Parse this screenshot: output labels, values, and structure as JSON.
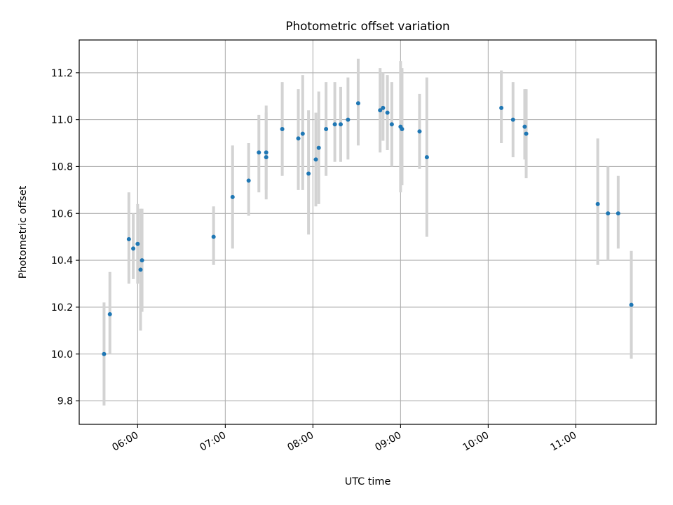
{
  "chart_data": {
    "type": "scatter",
    "title": "Photometric offset variation",
    "xlabel": "UTC time",
    "ylabel": "Photometric offset",
    "xlim": [
      "05:20",
      "11:55"
    ],
    "ylim": [
      9.7,
      11.34
    ],
    "xticks": [
      "06:00",
      "07:00",
      "08:00",
      "09:00",
      "10:00",
      "11:00"
    ],
    "yticks": [
      "9.8",
      "10.0",
      "10.2",
      "10.4",
      "10.6",
      "10.8",
      "11.0",
      "11.2"
    ],
    "grid": true,
    "point_color": "#1f77b4",
    "errorbar_color": "#d3d3d3",
    "series": [
      {
        "points": [
          {
            "t": "05:37",
            "y": 10.0,
            "lo": 9.78,
            "hi": 10.22
          },
          {
            "t": "05:41",
            "y": 10.17,
            "lo": 10.0,
            "hi": 10.35
          },
          {
            "t": "05:54",
            "y": 10.49,
            "lo": 10.3,
            "hi": 10.69
          },
          {
            "t": "05:57",
            "y": 10.45,
            "lo": 10.32,
            "hi": 10.6
          },
          {
            "t": "06:00",
            "y": 10.47,
            "lo": 10.3,
            "hi": 10.64
          },
          {
            "t": "06:02",
            "y": 10.36,
            "lo": 10.1,
            "hi": 10.62
          },
          {
            "t": "06:03",
            "y": 10.4,
            "lo": 10.18,
            "hi": 10.62
          },
          {
            "t": "06:52",
            "y": 10.5,
            "lo": 10.38,
            "hi": 10.63
          },
          {
            "t": "07:05",
            "y": 10.67,
            "lo": 10.45,
            "hi": 10.89
          },
          {
            "t": "07:16",
            "y": 10.74,
            "lo": 10.59,
            "hi": 10.9
          },
          {
            "t": "07:23",
            "y": 10.86,
            "lo": 10.69,
            "hi": 11.02
          },
          {
            "t": "07:28",
            "y": 10.86,
            "lo": 10.7,
            "hi": 11.06
          },
          {
            "t": "07:28",
            "y": 10.84,
            "lo": 10.66,
            "hi": 11.03
          },
          {
            "t": "07:39",
            "y": 10.96,
            "lo": 10.76,
            "hi": 11.16
          },
          {
            "t": "07:50",
            "y": 10.92,
            "lo": 10.7,
            "hi": 11.13
          },
          {
            "t": "07:53",
            "y": 10.94,
            "lo": 10.7,
            "hi": 11.19
          },
          {
            "t": "07:57",
            "y": 10.77,
            "lo": 10.51,
            "hi": 11.04
          },
          {
            "t": "08:02",
            "y": 10.83,
            "lo": 10.63,
            "hi": 11.03
          },
          {
            "t": "08:04",
            "y": 10.88,
            "lo": 10.64,
            "hi": 11.12
          },
          {
            "t": "08:09",
            "y": 10.96,
            "lo": 10.76,
            "hi": 11.16
          },
          {
            "t": "08:15",
            "y": 10.98,
            "lo": 10.82,
            "hi": 11.16
          },
          {
            "t": "08:19",
            "y": 10.98,
            "lo": 10.82,
            "hi": 11.14
          },
          {
            "t": "08:24",
            "y": 11.0,
            "lo": 10.83,
            "hi": 11.18
          },
          {
            "t": "08:31",
            "y": 11.07,
            "lo": 10.89,
            "hi": 11.26
          },
          {
            "t": "08:46",
            "y": 11.04,
            "lo": 10.86,
            "hi": 11.22
          },
          {
            "t": "08:48",
            "y": 11.05,
            "lo": 10.91,
            "hi": 11.2
          },
          {
            "t": "08:51",
            "y": 11.03,
            "lo": 10.87,
            "hi": 11.19
          },
          {
            "t": "08:54",
            "y": 10.98,
            "lo": 10.8,
            "hi": 11.16
          },
          {
            "t": "09:00",
            "y": 10.97,
            "lo": 10.69,
            "hi": 11.25
          },
          {
            "t": "09:01",
            "y": 10.96,
            "lo": 10.72,
            "hi": 11.22
          },
          {
            "t": "09:13",
            "y": 10.95,
            "lo": 10.79,
            "hi": 11.11
          },
          {
            "t": "09:18",
            "y": 10.84,
            "lo": 10.5,
            "hi": 11.18
          },
          {
            "t": "10:09",
            "y": 11.05,
            "lo": 10.9,
            "hi": 11.21
          },
          {
            "t": "10:17",
            "y": 11.0,
            "lo": 10.84,
            "hi": 11.16
          },
          {
            "t": "10:25",
            "y": 10.97,
            "lo": 10.83,
            "hi": 11.13
          },
          {
            "t": "10:26",
            "y": 10.94,
            "lo": 10.75,
            "hi": 11.13
          },
          {
            "t": "11:15",
            "y": 10.64,
            "lo": 10.38,
            "hi": 10.92
          },
          {
            "t": "11:22",
            "y": 10.6,
            "lo": 10.4,
            "hi": 10.8
          },
          {
            "t": "11:29",
            "y": 10.6,
            "lo": 10.45,
            "hi": 10.76
          },
          {
            "t": "11:38",
            "y": 10.21,
            "lo": 9.98,
            "hi": 10.44
          }
        ]
      }
    ]
  }
}
